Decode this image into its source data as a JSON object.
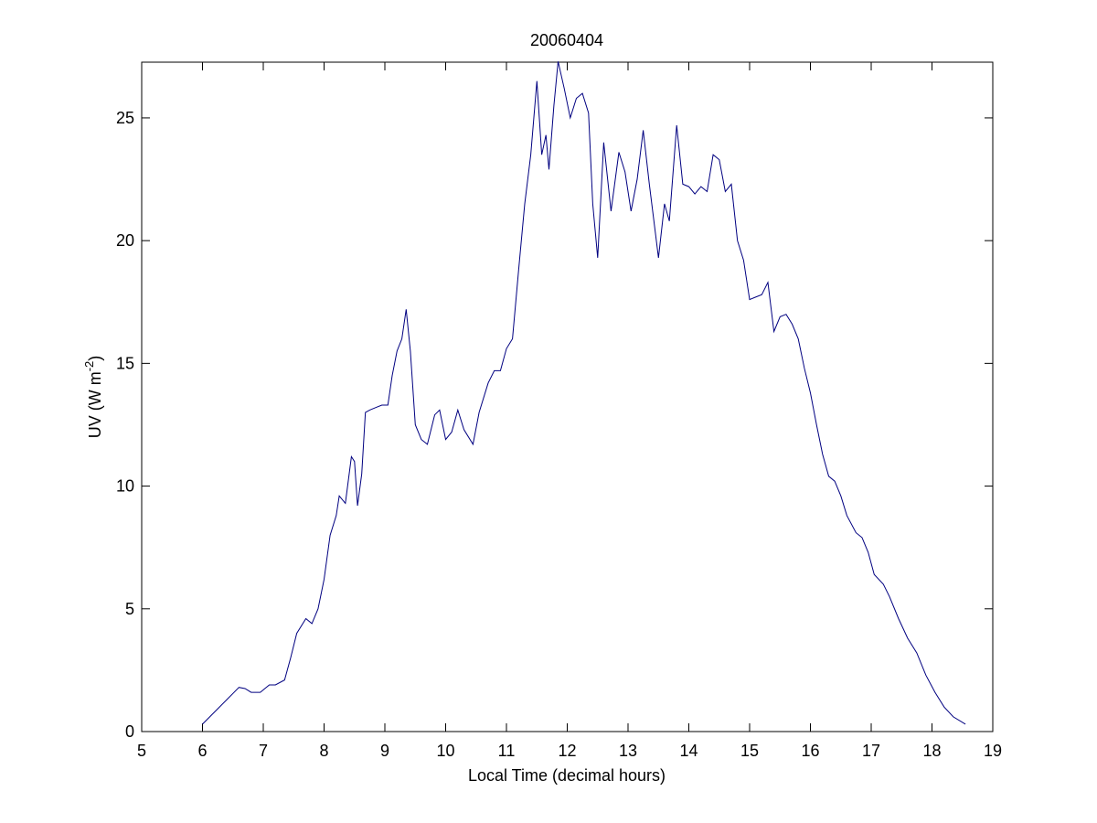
{
  "chart_data": {
    "type": "line",
    "title": "20060404",
    "xlabel": "Local Time (decimal hours)",
    "ylabel": {
      "text": "UV (W m",
      "superscript": "-2",
      "suffix": ")"
    },
    "xlim": [
      5,
      19
    ],
    "xticks": [
      5,
      6,
      7,
      8,
      9,
      10,
      11,
      12,
      13,
      14,
      15,
      16,
      17,
      18,
      19
    ],
    "ylim": [
      0,
      27.27
    ],
    "yticks": [
      0,
      5,
      10,
      15,
      20,
      25
    ],
    "x": [
      6.0,
      6.2,
      6.4,
      6.6,
      6.7,
      6.8,
      6.95,
      7.1,
      7.2,
      7.35,
      7.45,
      7.55,
      7.7,
      7.8,
      7.9,
      8.0,
      8.1,
      8.2,
      8.25,
      8.35,
      8.45,
      8.5,
      8.55,
      8.62,
      8.68,
      8.75,
      8.85,
      8.95,
      9.05,
      9.12,
      9.2,
      9.28,
      9.35,
      9.42,
      9.5,
      9.6,
      9.7,
      9.82,
      9.9,
      10.0,
      10.1,
      10.2,
      10.3,
      10.45,
      10.55,
      10.7,
      10.8,
      10.9,
      11.0,
      11.1,
      11.2,
      11.3,
      11.4,
      11.5,
      11.58,
      11.65,
      11.7,
      11.78,
      11.85,
      11.95,
      12.05,
      12.15,
      12.25,
      12.35,
      12.42,
      12.5,
      12.6,
      12.72,
      12.85,
      12.95,
      13.05,
      13.15,
      13.25,
      13.35,
      13.5,
      13.6,
      13.68,
      13.8,
      13.9,
      14.0,
      14.1,
      14.2,
      14.3,
      14.4,
      14.5,
      14.6,
      14.7,
      14.8,
      14.9,
      15.0,
      15.1,
      15.2,
      15.3,
      15.4,
      15.5,
      15.6,
      15.7,
      15.8,
      15.9,
      16.0,
      16.1,
      16.2,
      16.3,
      16.4,
      16.5,
      16.6,
      16.75,
      16.85,
      16.95,
      17.05,
      17.2,
      17.3,
      17.45,
      17.6,
      17.75,
      17.9,
      18.05,
      18.2,
      18.35,
      18.55
    ],
    "series": [
      {
        "name": "UV",
        "color": "#000080",
        "values": [
          0.3,
          0.8,
          1.3,
          1.8,
          1.75,
          1.6,
          1.6,
          1.9,
          1.9,
          2.1,
          3.0,
          4.0,
          4.6,
          4.4,
          5.0,
          6.2,
          8.0,
          8.8,
          9.6,
          9.3,
          11.2,
          11.0,
          9.2,
          10.5,
          13.0,
          13.1,
          13.2,
          13.3,
          13.3,
          14.5,
          15.5,
          16.0,
          17.2,
          15.5,
          12.5,
          11.9,
          11.7,
          12.9,
          13.1,
          11.9,
          12.2,
          13.1,
          12.3,
          11.7,
          13.0,
          14.2,
          14.7,
          14.7,
          15.6,
          16.0,
          18.8,
          21.5,
          23.5,
          26.5,
          23.5,
          24.3,
          22.9,
          25.5,
          27.3,
          26.2,
          25.0,
          25.8,
          26.0,
          25.2,
          21.5,
          19.3,
          24.0,
          21.2,
          23.6,
          22.8,
          21.2,
          22.5,
          24.5,
          22.3,
          19.3,
          21.5,
          20.8,
          24.7,
          22.3,
          22.2,
          21.9,
          22.2,
          22.0,
          23.5,
          23.3,
          22.0,
          22.3,
          20.0,
          19.2,
          17.6,
          17.7,
          17.8,
          18.3,
          16.3,
          16.9,
          17.0,
          16.6,
          16.0,
          14.8,
          13.8,
          12.5,
          11.3,
          10.4,
          10.2,
          9.6,
          8.8,
          8.1,
          7.9,
          7.3,
          6.4,
          6.0,
          5.5,
          4.6,
          3.8,
          3.2,
          2.3,
          1.6,
          1.0,
          0.6,
          0.3
        ]
      }
    ]
  }
}
